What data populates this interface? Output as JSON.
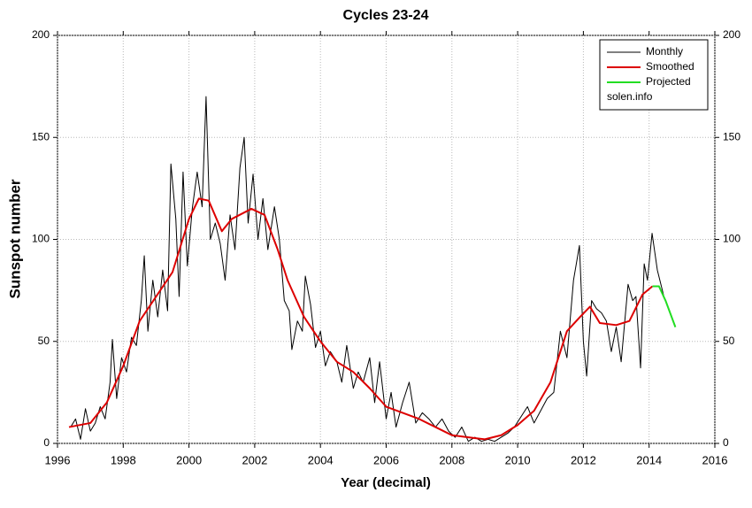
{
  "chart_data": {
    "type": "line",
    "title": "Cycles 23-24",
    "x_label": "Year (decimal)",
    "y_label": "Sunspot number",
    "annotation": "solen.info",
    "xlim": [
      1996,
      2016
    ],
    "xticks": [
      1996,
      1998,
      2000,
      2002,
      2004,
      2006,
      2008,
      2010,
      2012,
      2014,
      2016
    ],
    "ylim": [
      0,
      200
    ],
    "yticks": [
      0,
      50,
      100,
      150,
      200
    ],
    "grid": true,
    "legend": "top-right",
    "series": [
      {
        "name": "Monthly",
        "color": "#000000",
        "width": 1,
        "x": [
          1996.4,
          1996.55,
          1996.7,
          1996.85,
          1997.0,
          1997.15,
          1997.3,
          1997.45,
          1997.6,
          1997.67,
          1997.8,
          1997.95,
          1998.1,
          1998.25,
          1998.4,
          1998.55,
          1998.64,
          1998.75,
          1998.9,
          1999.05,
          1999.2,
          1999.35,
          1999.45,
          1999.6,
          1999.7,
          1999.82,
          1999.95,
          2000.1,
          2000.25,
          2000.4,
          2000.52,
          2000.65,
          2000.8,
          2000.95,
          2001.1,
          2001.25,
          2001.4,
          2001.55,
          2001.68,
          2001.8,
          2001.95,
          2002.1,
          2002.25,
          2002.4,
          2002.6,
          2002.75,
          2002.9,
          2003.05,
          2003.13,
          2003.3,
          2003.45,
          2003.54,
          2003.7,
          2003.85,
          2004.0,
          2004.15,
          2004.3,
          2004.5,
          2004.65,
          2004.8,
          2005.0,
          2005.15,
          2005.3,
          2005.5,
          2005.65,
          2005.8,
          2006.0,
          2006.15,
          2006.3,
          2006.5,
          2006.7,
          2006.9,
          2007.1,
          2007.3,
          2007.5,
          2007.7,
          2007.9,
          2008.1,
          2008.3,
          2008.5,
          2008.7,
          2008.9,
          2009.1,
          2009.3,
          2009.5,
          2009.7,
          2009.9,
          2010.1,
          2010.3,
          2010.5,
          2010.7,
          2010.9,
          2011.1,
          2011.3,
          2011.5,
          2011.7,
          2011.88,
          2012.0,
          2012.1,
          2012.25,
          2012.4,
          2012.55,
          2012.7,
          2012.85,
          2013.0,
          2013.15,
          2013.36,
          2013.5,
          2013.6,
          2013.74,
          2013.85,
          2013.95,
          2014.09,
          2014.25,
          2014.45
        ],
        "values": [
          8,
          12,
          2,
          17,
          6,
          10,
          18,
          12,
          30,
          51,
          22,
          42,
          35,
          52,
          48,
          70,
          92,
          55,
          80,
          62,
          85,
          65,
          137,
          110,
          72,
          133,
          87,
          115,
          133,
          116,
          170,
          100,
          108,
          98,
          80,
          112,
          95,
          135,
          150,
          108,
          132,
          100,
          120,
          95,
          116,
          100,
          70,
          65,
          46,
          60,
          55,
          82,
          68,
          47,
          55,
          38,
          45,
          40,
          30,
          48,
          27,
          35,
          30,
          42,
          20,
          40,
          12,
          25,
          8,
          20,
          30,
          10,
          15,
          12,
          8,
          12,
          6,
          3,
          8,
          1,
          3,
          1,
          2,
          1,
          3,
          5,
          8,
          13,
          18,
          10,
          16,
          22,
          25,
          55,
          42,
          80,
          97,
          50,
          33,
          70,
          66,
          64,
          60,
          45,
          57,
          40,
          78,
          70,
          72,
          37,
          88,
          80,
          103,
          85,
          72
        ]
      },
      {
        "name": "Smoothed",
        "color": "#dd0000",
        "width": 2,
        "x": [
          1996.35,
          1997.0,
          1997.5,
          1998.0,
          1998.5,
          1999.0,
          1999.5,
          2000.0,
          2000.3,
          2000.6,
          2001.0,
          2001.3,
          2001.9,
          2002.3,
          2002.7,
          2003.0,
          2003.5,
          2004.0,
          2004.5,
          2005.0,
          2005.5,
          2006.0,
          2006.5,
          2007.0,
          2007.5,
          2008.0,
          2008.5,
          2009.0,
          2009.5,
          2010.0,
          2010.5,
          2011.0,
          2011.5,
          2011.9,
          2012.2,
          2012.5,
          2013.0,
          2013.4,
          2013.8,
          2014.1
        ],
        "values": [
          8,
          10,
          20,
          38,
          60,
          72,
          84,
          110,
          120,
          119,
          104,
          110,
          115,
          112,
          95,
          80,
          62,
          50,
          40,
          35,
          27,
          18,
          15,
          12,
          8,
          4,
          3,
          2,
          4,
          9,
          16,
          30,
          55,
          62,
          67,
          59,
          58,
          60,
          73,
          77
        ]
      },
      {
        "name": "Projected",
        "color": "#22dd22",
        "width": 2,
        "x": [
          2014.1,
          2014.3,
          2014.5,
          2014.8
        ],
        "values": [
          77,
          77,
          70,
          57
        ]
      }
    ]
  }
}
